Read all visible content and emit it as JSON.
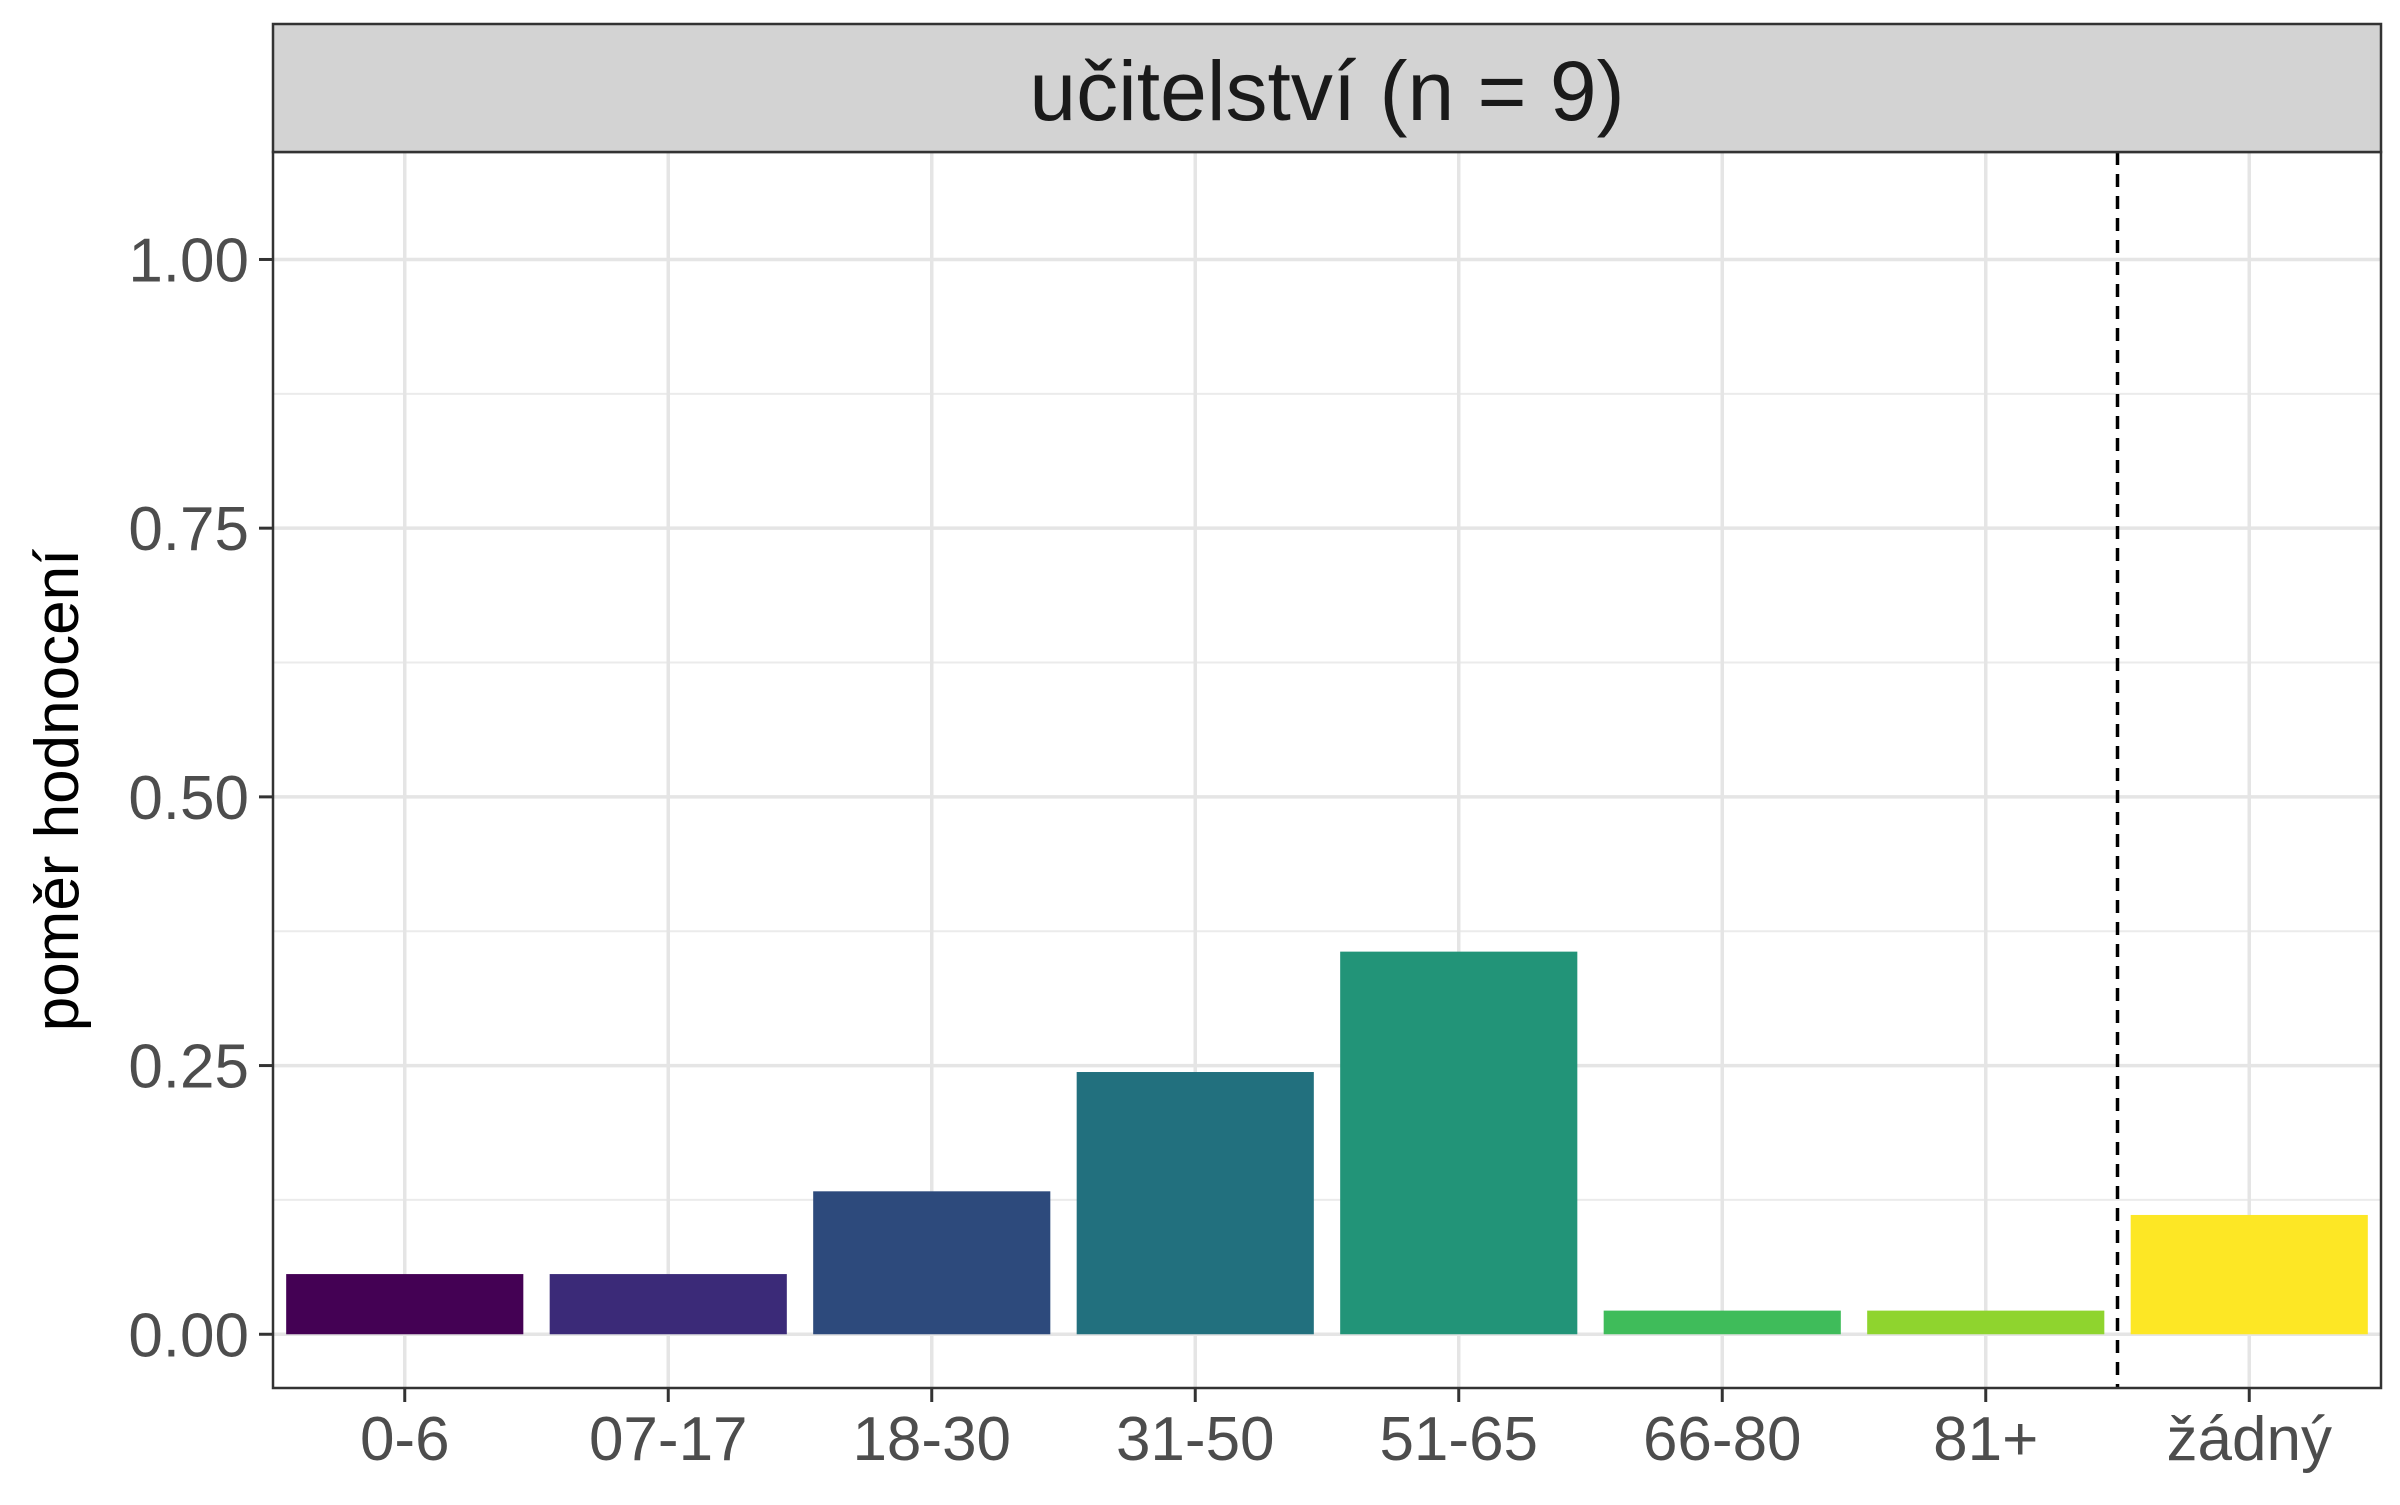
{
  "chart_data": {
    "type": "bar",
    "title": "",
    "facet_label": "učitelství (n = 9)",
    "xlabel": "",
    "ylabel": "poměr hodnocení",
    "categories": [
      "0-6",
      "07-17",
      "18-30",
      "31-50",
      "51-65",
      "66-80",
      "81+",
      "žádný"
    ],
    "values": [
      0.056,
      0.056,
      0.133,
      0.244,
      0.356,
      0.022,
      0.022,
      0.111
    ],
    "colors": [
      "#440154",
      "#3b2a78",
      "#2d4a7c",
      "#22707e",
      "#229478",
      "#3fbc5a",
      "#8fd42e",
      "#fde725"
    ],
    "ylim": [
      -0.05,
      1.1
    ],
    "yticks": [
      0.0,
      0.25,
      0.5,
      0.75,
      1.0
    ],
    "ytick_labels": [
      "0.00",
      "0.25",
      "0.50",
      "0.75",
      "1.00"
    ],
    "grid": true,
    "dashed_separator_between": [
      "81+",
      "žádný"
    ]
  }
}
